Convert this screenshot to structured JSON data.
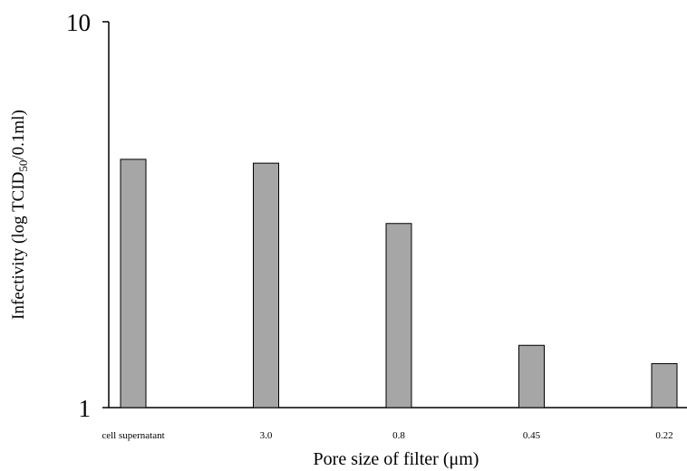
{
  "chart_data": {
    "type": "bar",
    "categories": [
      "cell supernatant",
      "3.0",
      "0.8",
      "0.45",
      "0.22"
    ],
    "values": [
      4.4,
      4.3,
      3.0,
      1.45,
      1.3
    ],
    "title": "",
    "xlabel": "Pore size of filter (μm)",
    "ylabel_parts": {
      "before": "Infectivity (log TCID",
      "subscript": "50",
      "after": "/0.1ml)"
    },
    "y_scale": "log",
    "ylim": [
      1,
      10
    ],
    "y_ticks": [
      "1",
      "10"
    ],
    "bar_color": "#a6a6a6",
    "grid": false,
    "legend": "none"
  }
}
